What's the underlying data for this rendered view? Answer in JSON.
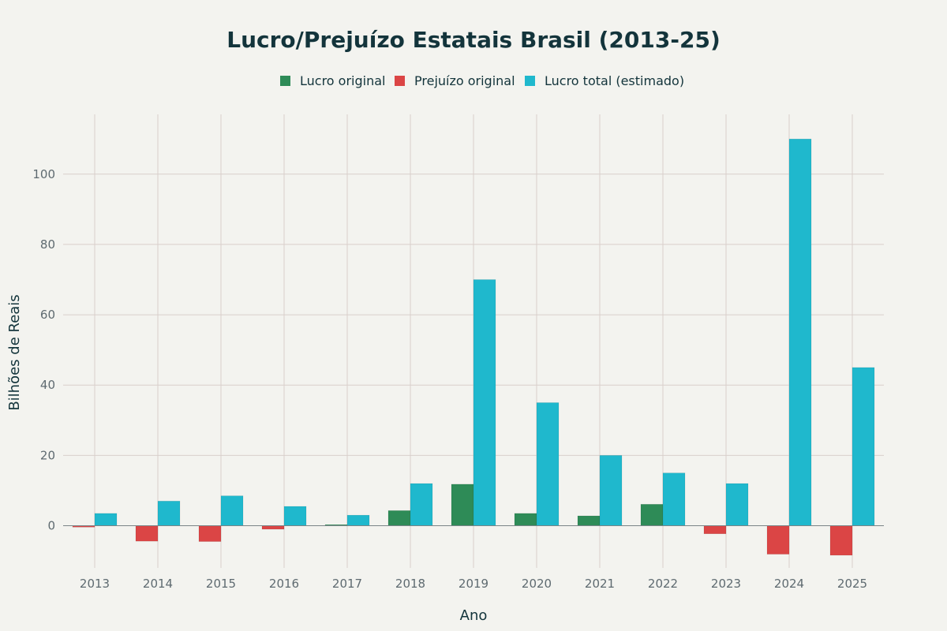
{
  "chart_data": {
    "type": "bar",
    "title": "Lucro/Prejuízo Estatais Brasil (2013-25)",
    "xlabel": "Ano",
    "ylabel": "Bilhões de Reais",
    "ylim": [
      -12,
      117
    ],
    "yticks": [
      0,
      20,
      40,
      60,
      80,
      100
    ],
    "grid": true,
    "legend_position": "top-center",
    "categories": [
      "2013",
      "2014",
      "2015",
      "2016",
      "2017",
      "2018",
      "2019",
      "2020",
      "2021",
      "2022",
      "2023",
      "2024",
      "2025"
    ],
    "series": [
      {
        "name": "Lucro original",
        "slot": 0,
        "color": "#2e8b57",
        "values": [
          null,
          null,
          null,
          null,
          0.3,
          4.3,
          11.8,
          3.5,
          2.8,
          6.1,
          null,
          null,
          null
        ]
      },
      {
        "name": "Prejuízo original",
        "slot": 0,
        "color": "#db4545",
        "values": [
          -0.4,
          -4.4,
          -4.5,
          -1.0,
          null,
          null,
          null,
          null,
          null,
          null,
          -2.3,
          -8.1,
          -8.4
        ]
      },
      {
        "name": "Lucro total (estimado)",
        "slot": 1,
        "color": "#1fb8cd",
        "values": [
          3.5,
          7.0,
          8.5,
          5.5,
          3.0,
          12.0,
          70.0,
          35.0,
          20.0,
          15.0,
          12.0,
          110.0,
          45.0
        ]
      }
    ]
  }
}
